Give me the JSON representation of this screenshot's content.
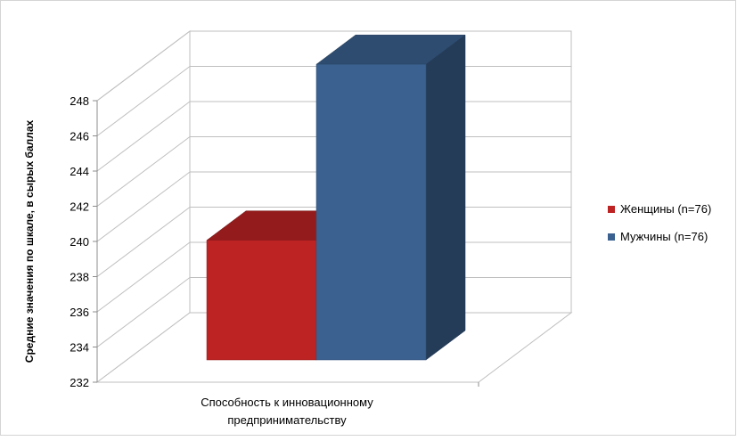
{
  "chart_data": {
    "type": "bar",
    "title": "",
    "categories": [
      "Способность к инновационному предпринимательству"
    ],
    "category_lines": [
      "Способность к инновационному",
      "предпринимательству"
    ],
    "xlabel": "",
    "ylabel": "Средние значения по шкале, в сырых баллах",
    "ylim": [
      232,
      248
    ],
    "yticks": [
      "232",
      "234",
      "236",
      "238",
      "240",
      "242",
      "244",
      "246",
      "248"
    ],
    "grid": true,
    "style": "3d-column",
    "legend_position": "right",
    "series": [
      {
        "name": "Женщины (n=76)",
        "values": [
          238.8
        ],
        "color": "#be2324"
      },
      {
        "name": "Мужчины (n=76)",
        "values": [
          248.8
        ],
        "color": "#3b6190"
      }
    ]
  }
}
